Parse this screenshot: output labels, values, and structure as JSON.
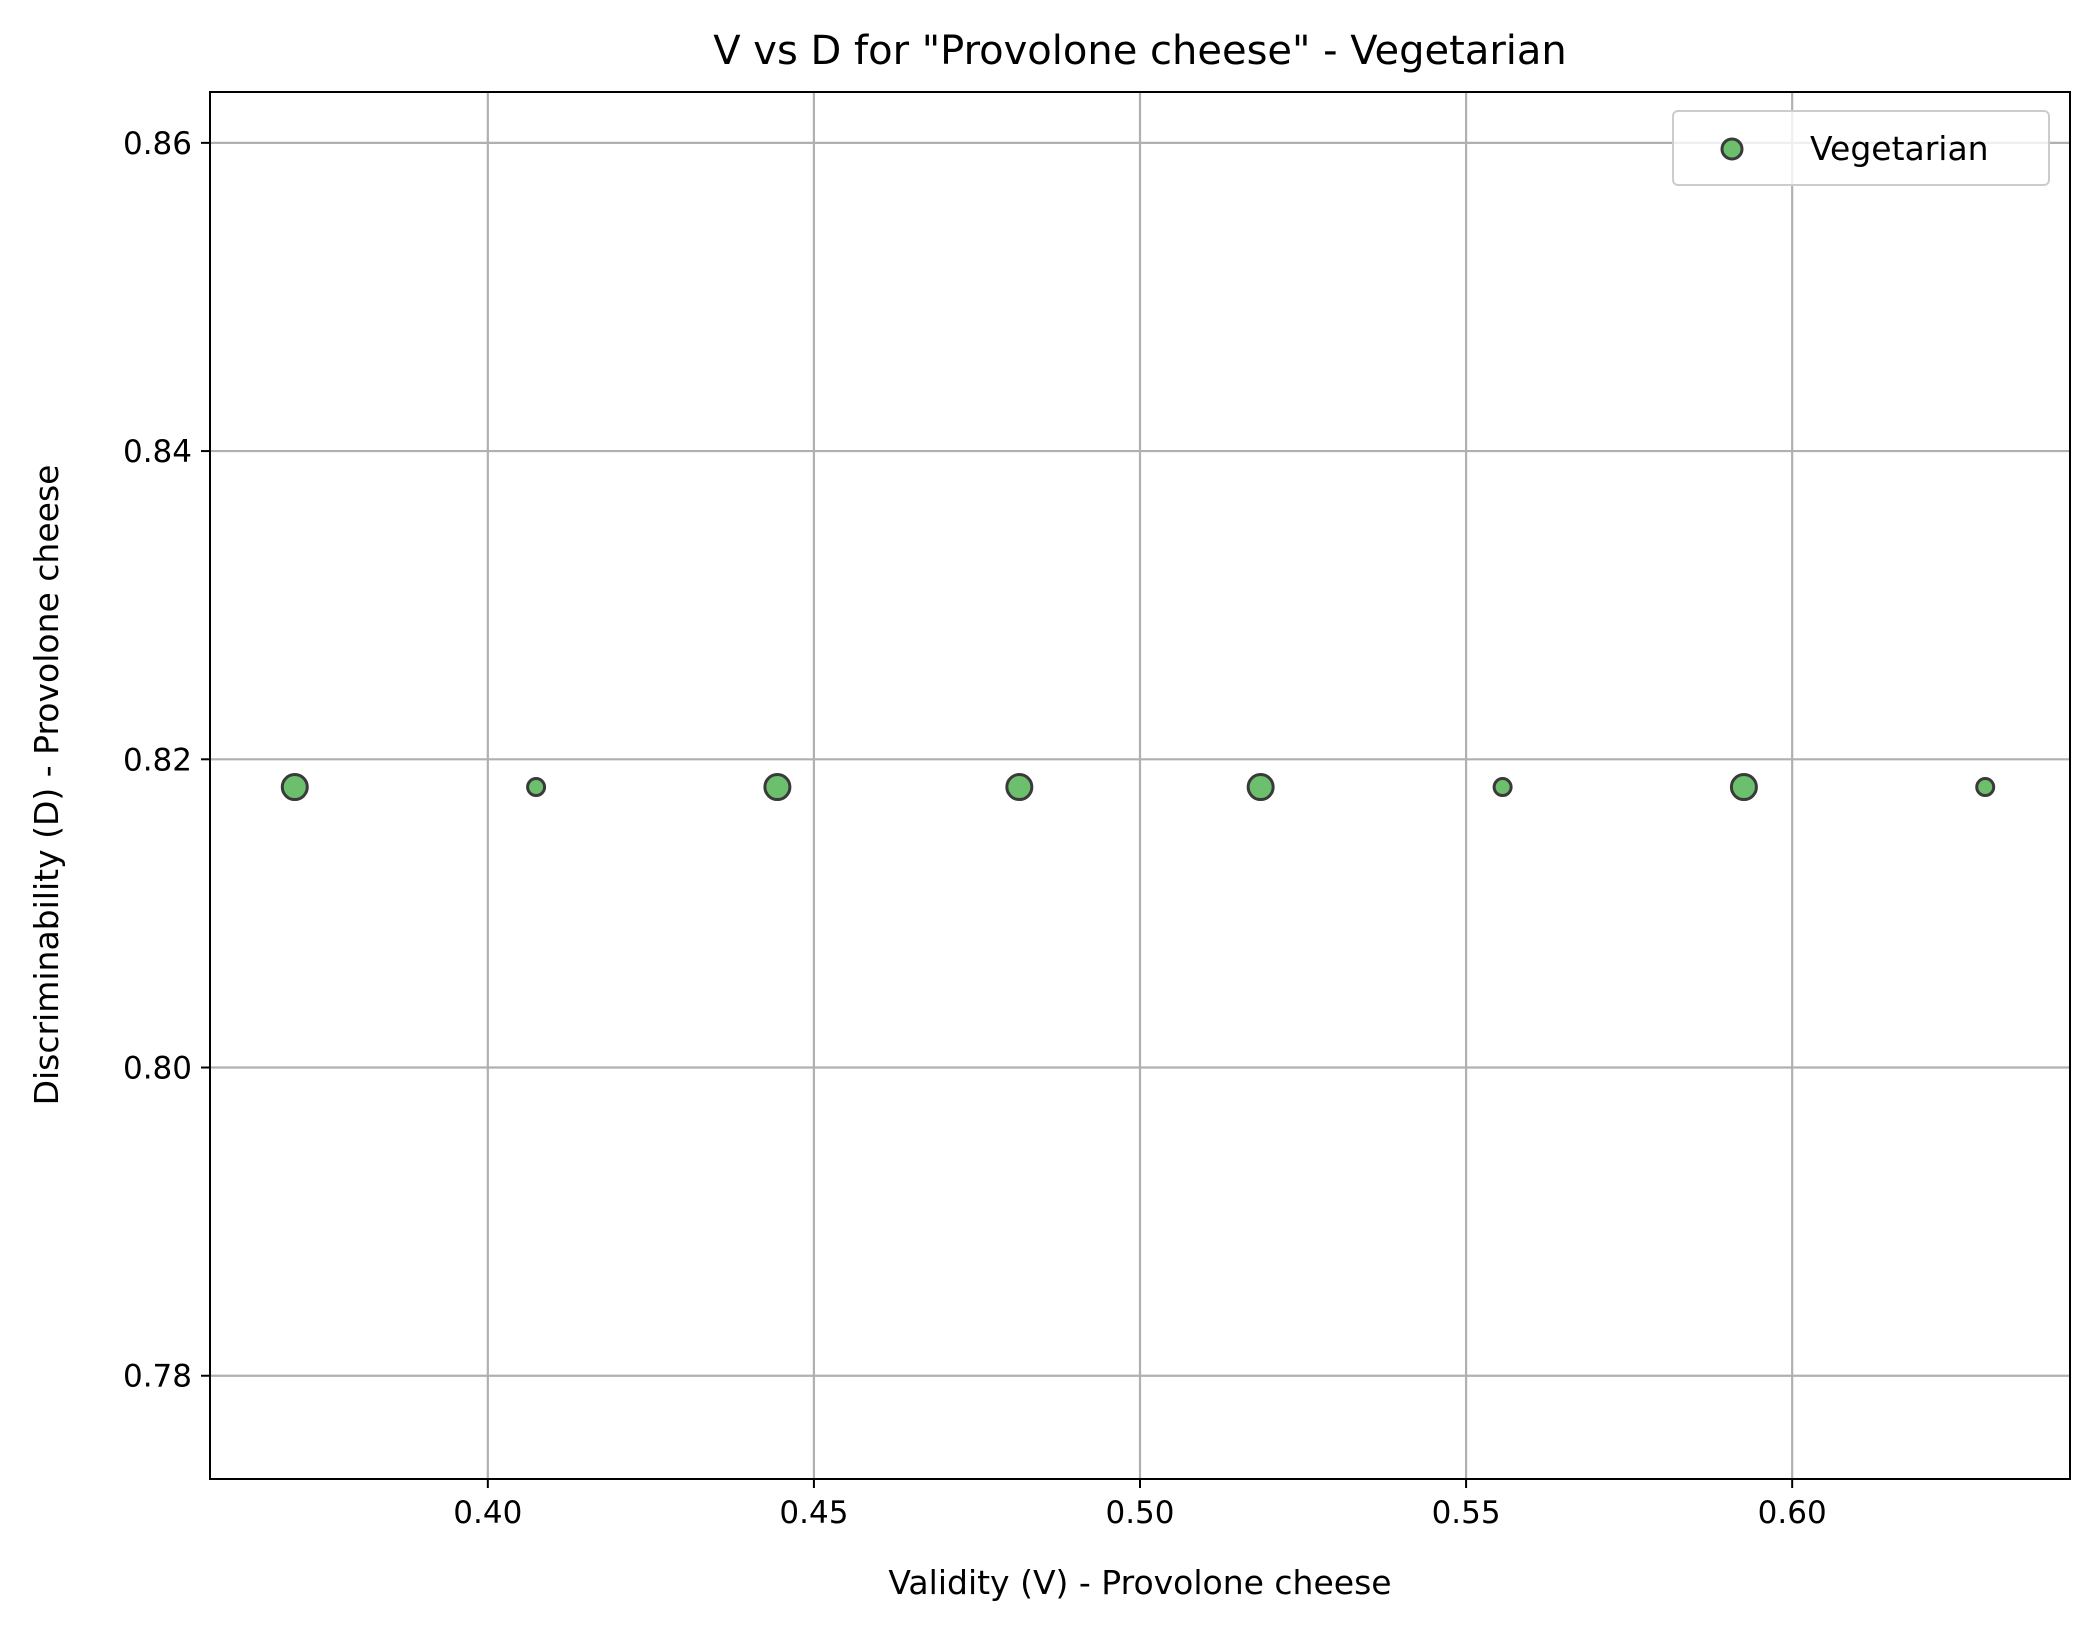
{
  "chart_data": {
    "type": "scatter",
    "title": "V vs D for \"Provolone cheese\" - Vegetarian",
    "xlabel": "Validity (V) - Provolone cheese",
    "ylabel": "Discriminability (D) - Provolone cheese",
    "xlim": [
      0.3574,
      0.6426
    ],
    "ylim": [
      0.7733,
      0.8633
    ],
    "xticks": [
      0.4,
      0.45,
      0.5,
      0.55,
      0.6
    ],
    "xtick_labels": [
      "0.40",
      "0.45",
      "0.50",
      "0.55",
      "0.60"
    ],
    "yticks": [
      0.78,
      0.8,
      0.82,
      0.84,
      0.86
    ],
    "ytick_labels": [
      "0.78",
      "0.80",
      "0.82",
      "0.84",
      "0.86"
    ],
    "grid": true,
    "legend_position": "top-right",
    "series": [
      {
        "name": "Vegetarian",
        "color": "#5cb85c",
        "edge_color": "#3a3a3a",
        "points": [
          {
            "x": 0.3704,
            "y": 0.8182,
            "size": "large"
          },
          {
            "x": 0.4074,
            "y": 0.8182,
            "size": "small"
          },
          {
            "x": 0.4444,
            "y": 0.8182,
            "size": "large"
          },
          {
            "x": 0.4815,
            "y": 0.8182,
            "size": "large"
          },
          {
            "x": 0.5185,
            "y": 0.8182,
            "size": "large"
          },
          {
            "x": 0.5556,
            "y": 0.8182,
            "size": "small"
          },
          {
            "x": 0.5926,
            "y": 0.8182,
            "size": "large"
          },
          {
            "x": 0.6296,
            "y": 0.8182,
            "size": "small"
          }
        ]
      }
    ]
  }
}
